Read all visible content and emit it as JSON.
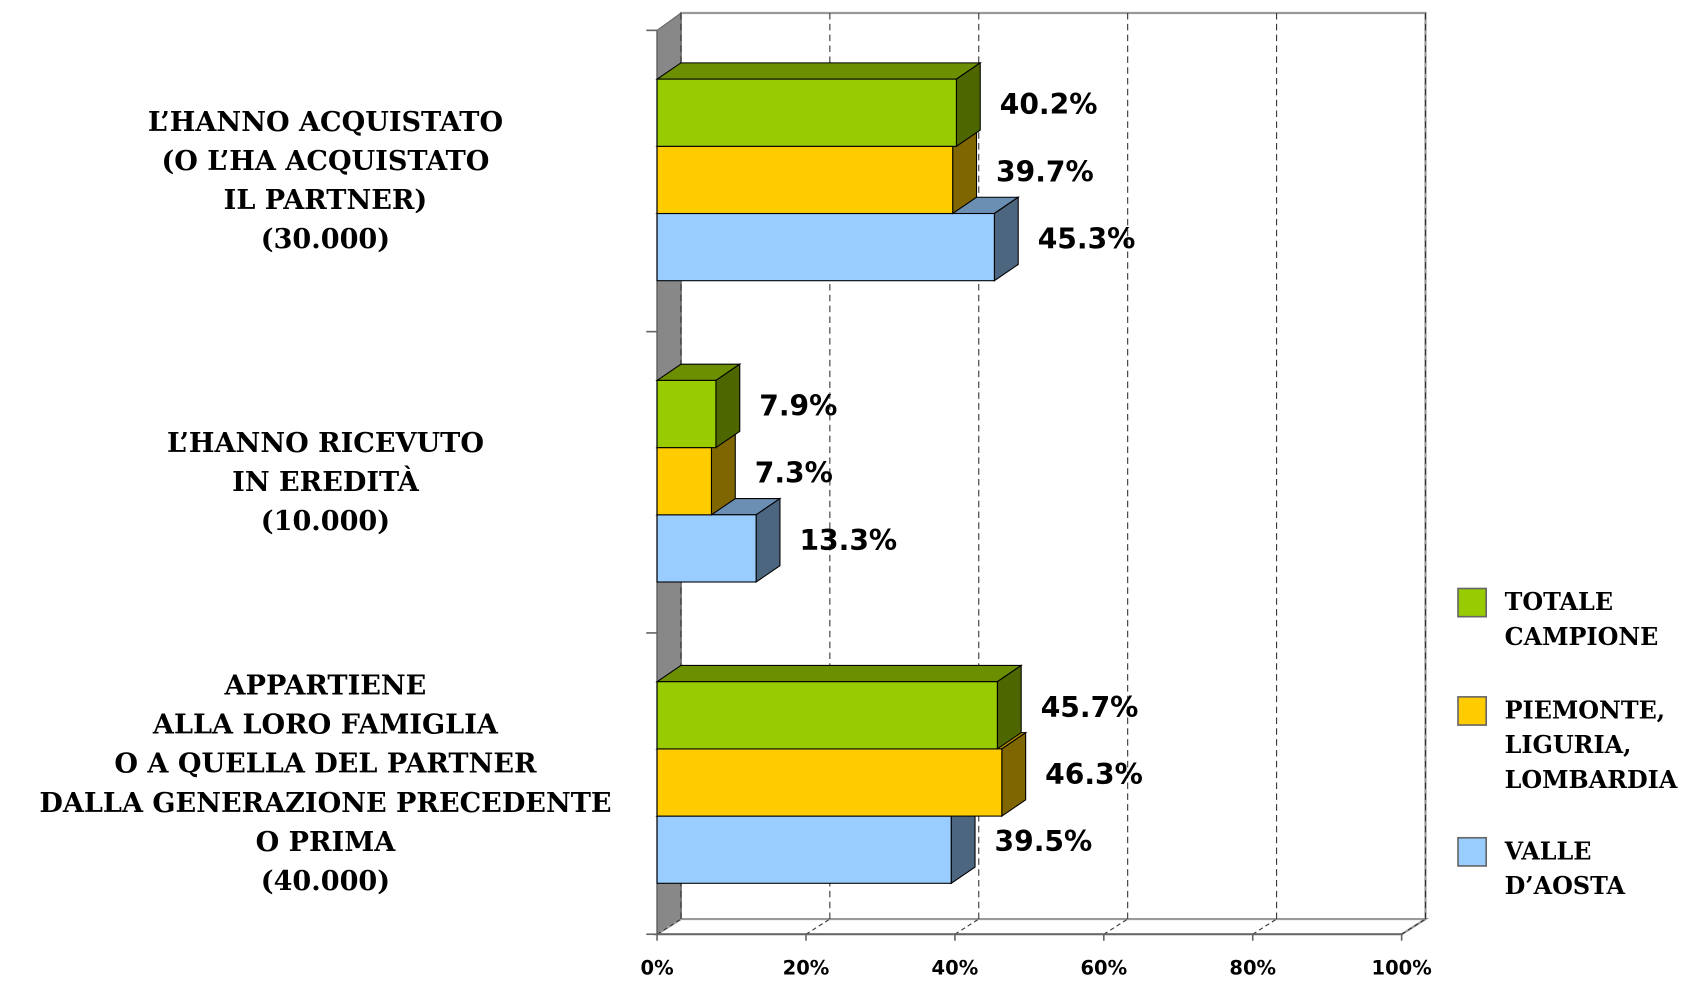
{
  "chart_data": {
    "type": "bar3d_horizontal",
    "categories": [
      "L’HANNO ACQUISTATO\n(O L’HA ACQUISTATO\nIL PARTNER)\n(30.000)",
      "L’HANNO RICEVUTO\nIN EREDITÀ\n(10.000)",
      "APPARTIENE\nALLA LORO FAMIGLIA\nO A QUELLA DEL PARTNER\nDALLA GENERAZIONE PRECEDENTE\nO PRIMA\n(40.000)"
    ],
    "series": [
      {
        "name": "TOTALE CAMPIONE",
        "color": "#99cc00",
        "values": [
          40.2,
          7.9,
          45.7
        ],
        "value_labels": [
          "40.2%",
          "7.9%",
          "45.7%"
        ]
      },
      {
        "name": "PIEMONTE, LIGURIA, LOMBARDIA",
        "color": "#ffcc00",
        "values": [
          39.7,
          7.3,
          46.3
        ],
        "value_labels": [
          "39.7%",
          "7.3%",
          "46.3%"
        ]
      },
      {
        "name": "VALLE D’AOSTA",
        "color": "#99ccff",
        "values": [
          45.3,
          13.3,
          39.5
        ],
        "value_labels": [
          "45.3%",
          "13.3%",
          "39.5%"
        ]
      }
    ],
    "xlim": [
      0,
      100
    ],
    "xticks": [
      {
        "value": 0,
        "label": "0%"
      },
      {
        "value": 20,
        "label": "20%"
      },
      {
        "value": 40,
        "label": "40%"
      },
      {
        "value": 60,
        "label": "60%"
      },
      {
        "value": 80,
        "label": "80%"
      },
      {
        "value": 100,
        "label": "100%"
      }
    ],
    "grid": true,
    "legend": "right"
  }
}
